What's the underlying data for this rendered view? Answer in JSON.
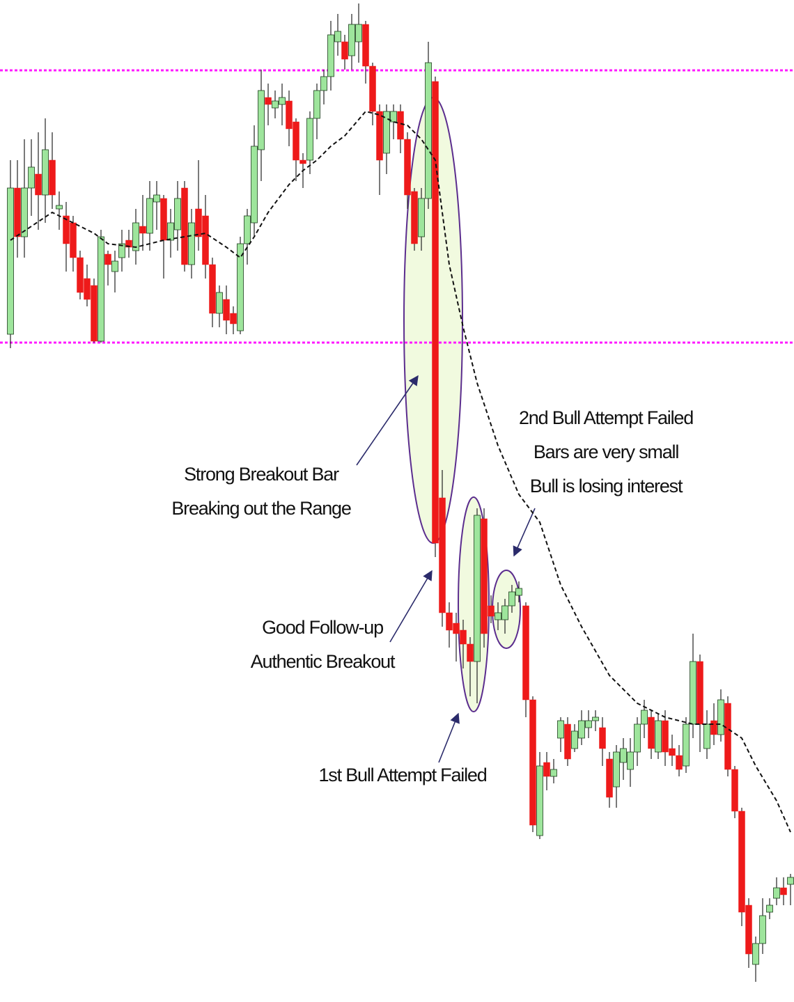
{
  "chart_data": {
    "type": "candlestick",
    "ylim": [
      0,
      1439
    ],
    "bull_color": "#9ee59c",
    "bear_color": "#ee1a1a",
    "open": [
      959,
      1169,
      1099,
      1169,
      1189,
      1159,
      1209,
      1139,
      1129,
      1119,
      1069,
      1039,
      1029,
      949,
      1074,
      1049,
      1069,
      1094,
      1079,
      1114,
      1104,
      1149,
      1154,
      1094,
      1109,
      1169,
      1059,
      1139,
      1129,
      1059,
      989,
      1009,
      989,
      964,
      1089,
      1119,
      1224,
      1299,
      1284,
      1289,
      1294,
      1264,
      1209,
      1209,
      1269,
      1309,
      1329,
      1379,
      1379,
      1359,
      1379,
      1404,
      1344,
      1279,
      1219,
      1264,
      1279,
      1239,
      1164,
      1099,
      1154,
      1322,
      724,
      559,
      544,
      534,
      514,
      489,
      694,
      569,
      549,
      549,
      569,
      584,
      569,
      434,
      239,
      344,
      324,
      379,
      399,
      364,
      379,
      394,
      404,
      394,
      349,
      309,
      344,
      334,
      359,
      399,
      409,
      359,
      404,
      364,
      354,
      339,
      399,
      489,
      364,
      404,
      384,
      429,
      334,
      274,
      139,
      54,
      84,
      129,
      149,
      164,
      169
    ],
    "high": [
      1209,
      1209,
      1239,
      1239,
      1249,
      1269,
      1249,
      1164,
      1149,
      1129,
      1079,
      1059,
      1039,
      1109,
      1079,
      1079,
      1109,
      1109,
      1139,
      1159,
      1179,
      1179,
      1159,
      1139,
      1179,
      1179,
      1139,
      1209,
      1159,
      1069,
      1029,
      1029,
      999,
      1099,
      1139,
      1259,
      1339,
      1319,
      1309,
      1319,
      1309,
      1269,
      1219,
      1279,
      1319,
      1339,
      1409,
      1419,
      1389,
      1419,
      1434,
      1409,
      1349,
      1289,
      1289,
      1289,
      1289,
      1249,
      1169,
      1169,
      1379,
      1329,
      764,
      574,
      559,
      549,
      524,
      709,
      709,
      584,
      574,
      579,
      599,
      604,
      574,
      439,
      359,
      359,
      349,
      409,
      409,
      399,
      419,
      419,
      419,
      409,
      359,
      369,
      379,
      379,
      409,
      434,
      419,
      414,
      419,
      384,
      369,
      409,
      529,
      499,
      419,
      429,
      449,
      439,
      339,
      279,
      149,
      94,
      149,
      149,
      179,
      179,
      184
    ],
    "low": [
      939,
      1069,
      1069,
      1129,
      1109,
      1119,
      1139,
      1109,
      1049,
      1049,
      1009,
      999,
      947,
      947,
      1029,
      1019,
      1049,
      1069,
      1059,
      1079,
      1079,
      1109,
      1039,
      1069,
      1079,
      1049,
      1039,
      1079,
      1039,
      969,
      969,
      959,
      959,
      959,
      1059,
      1099,
      1179,
      1259,
      1269,
      1259,
      1229,
      1179,
      1169,
      1189,
      1239,
      1289,
      1309,
      1359,
      1339,
      1339,
      1349,
      1319,
      1259,
      1159,
      1189,
      1239,
      1219,
      1139,
      1079,
      1079,
      1139,
      639,
      539,
      509,
      489,
      479,
      439,
      429,
      509,
      544,
      534,
      529,
      559,
      574,
      409,
      244,
      234,
      304,
      314,
      359,
      339,
      359,
      369,
      379,
      389,
      339,
      279,
      279,
      319,
      309,
      339,
      379,
      349,
      349,
      339,
      339,
      324,
      329,
      379,
      359,
      349,
      369,
      374,
      324,
      264,
      109,
      49,
      29,
      69,
      119,
      139,
      139,
      139
    ],
    "close": [
      1169,
      1099,
      1169,
      1199,
      1159,
      1224,
      1159,
      1144,
      1089,
      1069,
      1019,
      1009,
      949,
      1099,
      1059,
      1064,
      1089,
      1084,
      1119,
      1104,
      1154,
      1159,
      1094,
      1119,
      1154,
      1059,
      1119,
      1099,
      1059,
      989,
      1019,
      979,
      974,
      1089,
      1129,
      1229,
      1309,
      1289,
      1294,
      1299,
      1254,
      1209,
      1204,
      1269,
      1309,
      1329,
      1389,
      1394,
      1354,
      1404,
      1404,
      1344,
      1279,
      1209,
      1279,
      1279,
      1239,
      1159,
      1089,
      1154,
      1349,
      659,
      559,
      534,
      529,
      514,
      489,
      699,
      529,
      554,
      559,
      569,
      589,
      594,
      434,
      254,
      339,
      324,
      334,
      404,
      349,
      389,
      404,
      404,
      409,
      364,
      294,
      359,
      364,
      359,
      399,
      419,
      364,
      404,
      359,
      354,
      334,
      399,
      489,
      399,
      399,
      384,
      434,
      334,
      274,
      129,
      69,
      84,
      124,
      139,
      164,
      154,
      179
    ],
    "moving_average": {
      "color": "#111111",
      "x": [
        0,
        3,
        6,
        9,
        12,
        14,
        18,
        22,
        25,
        28,
        31,
        33,
        35,
        37,
        40,
        42,
        44,
        46,
        48,
        51,
        53,
        55,
        57,
        59,
        61,
        63,
        65,
        67,
        70,
        73,
        76,
        79,
        82,
        86,
        90,
        94,
        98,
        102,
        105,
        107,
        110,
        112
      ],
      "values": [
        1094,
        1114,
        1134,
        1119,
        1104,
        1089,
        1084,
        1094,
        1099,
        1104,
        1084,
        1069,
        1099,
        1134,
        1174,
        1194,
        1209,
        1229,
        1244,
        1279,
        1274,
        1264,
        1259,
        1239,
        1209,
        1059,
        969,
        889,
        799,
        729,
        689,
        599,
        539,
        469,
        429,
        409,
        399,
        399,
        379,
        339,
        289,
        244
      ]
    },
    "levels": {
      "color": "#ff1aff",
      "values": [
        1338,
        947
      ]
    },
    "annotations": [
      {
        "lines": [
          "Strong Breakout Bar",
          "Breaking out the Range"
        ]
      },
      {
        "lines": [
          "2nd Bull Attempt Failed",
          "Bars are very small",
          "Bull is losing interest"
        ]
      },
      {
        "lines": [
          "Good Follow-up",
          "Authentic Breakout"
        ]
      },
      {
        "lines": [
          "1st Bull Attempt Failed"
        ]
      }
    ]
  }
}
